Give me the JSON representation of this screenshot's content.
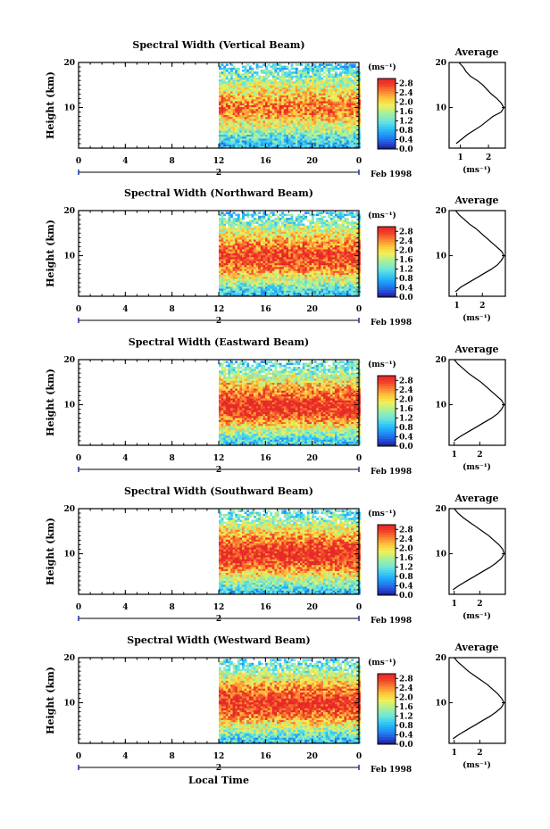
{
  "figure": {
    "xlabel": "Local Time",
    "date_label": "Feb 1998",
    "ylabel": "Height (km)",
    "avg_title": "Average",
    "unit": "(ms⁻¹)",
    "day_marker": "2"
  },
  "chart_data": [
    {
      "type": "heatmap",
      "title": "Spectral Width (Vertical Beam)",
      "xlabel": "Local Time",
      "ylabel": "Height (km)",
      "x_ticks": [
        "0",
        "4",
        "8",
        "12",
        "16",
        "20",
        "0"
      ],
      "xlim": [
        0,
        24
      ],
      "data_start_hour": 12,
      "y_ticks": [
        10,
        20
      ],
      "ylim": [
        1,
        20
      ],
      "colorbar": {
        "label": "(ms⁻¹)",
        "ticks": [
          "2.8",
          "2.4",
          "2.0",
          "1.6",
          "1.2",
          "0.8",
          "0.4",
          "0.0"
        ],
        "range": [
          0,
          3.0
        ]
      },
      "avg_profile": {
        "title": "Average",
        "xlabel": "(ms⁻¹)",
        "x_ticks": [
          "1",
          "2"
        ],
        "xlim": [
          0.6,
          2.6
        ],
        "height": [
          2,
          3,
          4,
          5,
          6,
          7,
          8,
          9,
          10,
          11,
          12,
          13,
          14,
          15,
          16,
          17,
          18,
          19,
          20
        ],
        "value": [
          0.85,
          1.05,
          1.25,
          1.5,
          1.75,
          1.95,
          2.15,
          2.45,
          2.55,
          2.45,
          2.3,
          2.1,
          1.95,
          1.8,
          1.6,
          1.35,
          1.2,
          1.1,
          0.95
        ]
      }
    },
    {
      "type": "heatmap",
      "title": "Spectral Width (Northward Beam)",
      "xlabel": "Local Time",
      "ylabel": "Height (km)",
      "x_ticks": [
        "0",
        "4",
        "8",
        "12",
        "16",
        "20",
        "0"
      ],
      "xlim": [
        0,
        24
      ],
      "data_start_hour": 12,
      "y_ticks": [
        10,
        20
      ],
      "ylim": [
        1,
        20
      ],
      "colorbar": {
        "label": "(ms⁻¹)",
        "ticks": [
          "2.8",
          "2.4",
          "2.0",
          "1.6",
          "1.2",
          "0.8",
          "0.4",
          "0.0"
        ],
        "range": [
          0,
          3.0
        ]
      },
      "avg_profile": {
        "title": "Average",
        "xlabel": "(ms⁻¹)",
        "x_ticks": [
          "1",
          "2"
        ],
        "xlim": [
          0.7,
          2.9
        ],
        "height": [
          2,
          3,
          4,
          5,
          6,
          7,
          8,
          9,
          10,
          11,
          12,
          13,
          14,
          15,
          16,
          17,
          18,
          19,
          20
        ],
        "value": [
          0.95,
          1.15,
          1.45,
          1.75,
          2.05,
          2.35,
          2.6,
          2.75,
          2.85,
          2.75,
          2.55,
          2.35,
          2.15,
          1.95,
          1.75,
          1.5,
          1.3,
          1.1,
          0.95
        ]
      }
    },
    {
      "type": "heatmap",
      "title": "Spectral Width (Eastward Beam)",
      "xlabel": "Local Time",
      "ylabel": "Height (km)",
      "x_ticks": [
        "0",
        "4",
        "8",
        "12",
        "16",
        "20",
        "0"
      ],
      "xlim": [
        0,
        24
      ],
      "data_start_hour": 12,
      "y_ticks": [
        10,
        20
      ],
      "ylim": [
        1,
        20
      ],
      "colorbar": {
        "label": "(ms⁻¹)",
        "ticks": [
          "2.8",
          "2.4",
          "2.0",
          "1.6",
          "1.2",
          "0.8",
          "0.4",
          "0.0"
        ],
        "range": [
          0,
          3.0
        ]
      },
      "avg_profile": {
        "title": "Average",
        "xlabel": "(ms⁻¹)",
        "x_ticks": [
          "1",
          "2"
        ],
        "xlim": [
          0.8,
          3.0
        ],
        "height": [
          2,
          3,
          4,
          5,
          6,
          7,
          8,
          9,
          10,
          11,
          12,
          13,
          14,
          15,
          16,
          17,
          18,
          19,
          20
        ],
        "value": [
          1.0,
          1.25,
          1.55,
          1.85,
          2.15,
          2.45,
          2.7,
          2.85,
          2.95,
          2.85,
          2.65,
          2.45,
          2.25,
          2.05,
          1.8,
          1.55,
          1.35,
          1.15,
          1.0
        ]
      }
    },
    {
      "type": "heatmap",
      "title": "Spectral Width (Southward Beam)",
      "xlabel": "Local Time",
      "ylabel": "Height (km)",
      "x_ticks": [
        "0",
        "4",
        "8",
        "12",
        "16",
        "20",
        "0"
      ],
      "xlim": [
        0,
        24
      ],
      "data_start_hour": 12,
      "y_ticks": [
        10,
        20
      ],
      "ylim": [
        1,
        20
      ],
      "colorbar": {
        "label": "(ms⁻¹)",
        "ticks": [
          "2.8",
          "2.4",
          "2.0",
          "1.6",
          "1.2",
          "0.8",
          "0.4",
          "0.0"
        ],
        "range": [
          0,
          3.0
        ]
      },
      "avg_profile": {
        "title": "Average",
        "xlabel": "(ms⁻¹)",
        "x_ticks": [
          "1",
          "2"
        ],
        "xlim": [
          0.8,
          3.0
        ],
        "height": [
          2,
          3,
          4,
          5,
          6,
          7,
          8,
          9,
          10,
          11,
          12,
          13,
          14,
          15,
          16,
          17,
          18,
          19,
          20
        ],
        "value": [
          0.95,
          1.2,
          1.5,
          1.8,
          2.1,
          2.4,
          2.65,
          2.85,
          2.95,
          2.9,
          2.75,
          2.55,
          2.35,
          2.1,
          1.85,
          1.6,
          1.35,
          1.15,
          1.0
        ]
      }
    },
    {
      "type": "heatmap",
      "title": "Spectral Width (Westward Beam)",
      "xlabel": "Local Time",
      "ylabel": "Height (km)",
      "x_ticks": [
        "0",
        "4",
        "8",
        "12",
        "16",
        "20",
        "0"
      ],
      "xlim": [
        0,
        24
      ],
      "data_start_hour": 12,
      "y_ticks": [
        10,
        20
      ],
      "ylim": [
        1,
        20
      ],
      "colorbar": {
        "label": "(ms⁻¹)",
        "ticks": [
          "2.8",
          "2.4",
          "2.0",
          "1.6",
          "1.2",
          "0.8",
          "0.4",
          "0.0"
        ],
        "range": [
          0,
          3.0
        ]
      },
      "avg_profile": {
        "title": "Average",
        "xlabel": "(ms⁻¹)",
        "x_ticks": [
          "1",
          "2"
        ],
        "xlim": [
          0.8,
          3.0
        ],
        "height": [
          2,
          3,
          4,
          5,
          6,
          7,
          8,
          9,
          10,
          11,
          12,
          13,
          14,
          15,
          16,
          17,
          18,
          19,
          20
        ],
        "value": [
          0.95,
          1.2,
          1.5,
          1.8,
          2.1,
          2.4,
          2.65,
          2.85,
          2.95,
          2.85,
          2.7,
          2.5,
          2.3,
          2.05,
          1.8,
          1.55,
          1.35,
          1.15,
          1.0
        ]
      }
    }
  ]
}
